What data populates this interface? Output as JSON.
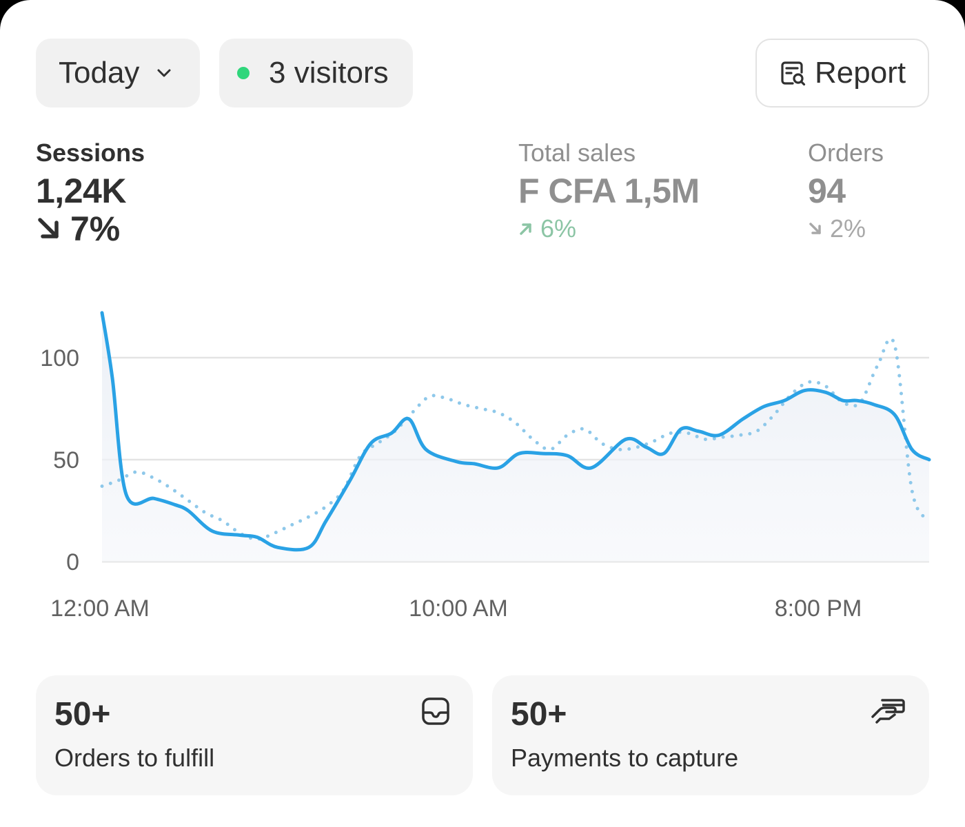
{
  "filters": {
    "date_range": "Today",
    "live_visitors": "3 visitors"
  },
  "report_button": "Report",
  "metrics": [
    {
      "label": "Sessions",
      "value": "1,24K",
      "delta": "7%",
      "direction": "down",
      "selected": true
    },
    {
      "label": "Total sales",
      "value": "F CFA 1,5M",
      "delta": "6%",
      "direction": "up",
      "selected": false
    },
    {
      "label": "Orders",
      "value": "94",
      "delta": "2%",
      "direction": "down",
      "selected": false
    }
  ],
  "chart_data": {
    "type": "line",
    "title": "",
    "y_ticks": [
      "100",
      "50",
      "0"
    ],
    "ylim": [
      0,
      100
    ],
    "x_tick_labels": [
      "12:00 AM",
      "10:00 AM",
      "8:00 PM"
    ],
    "grid": true,
    "colors": {
      "current": "#2aa2e5",
      "comparison": "#8ec8ea"
    },
    "series": [
      {
        "style": "solid",
        "x": [
          0,
          0.3,
          0.7,
          1.5,
          2.1,
          2.5,
          3.2,
          4.0,
          4.5,
          5.1,
          6.0,
          6.5,
          7.2,
          7.8,
          8.4,
          8.9,
          9.4,
          10.3,
          10.8,
          11.5,
          12.1,
          12.8,
          13.5,
          14.2,
          15.2,
          15.8,
          16.3,
          16.8,
          17.3,
          17.9,
          18.6,
          19.2,
          19.8,
          20.4,
          21.0,
          21.5,
          21.9,
          22.4,
          23.0,
          23.5,
          24.0
        ],
        "y": [
          122,
          90,
          33,
          31,
          28,
          25,
          15,
          13,
          12,
          7,
          7,
          20,
          40,
          58,
          63,
          70,
          55,
          49,
          48,
          46,
          53,
          53,
          52,
          46,
          60,
          56,
          53,
          65,
          64,
          62,
          70,
          76,
          79,
          84,
          83,
          79,
          79,
          77,
          72,
          55,
          50
        ]
      },
      {
        "style": "dotted",
        "x": [
          0,
          0.5,
          1.0,
          1.5,
          2.0,
          2.5,
          3.0,
          3.5,
          4.0,
          4.5,
          5.0,
          5.5,
          6.0,
          6.5,
          7.0,
          7.5,
          8.0,
          8.5,
          9.0,
          9.5,
          10.0,
          10.5,
          11.0,
          11.5,
          12.0,
          12.5,
          13.0,
          13.5,
          14.0,
          14.5,
          15.0,
          15.5,
          16.0,
          16.5,
          17.0,
          17.5,
          18.0,
          18.5,
          19.0,
          19.5,
          20.0,
          20.5,
          21.0,
          21.5,
          22.0,
          22.5,
          23.0,
          23.5,
          24.0
        ],
        "y": [
          37,
          40,
          44,
          41,
          36,
          30,
          24,
          20,
          14,
          11,
          14,
          18,
          22,
          27,
          35,
          52,
          58,
          64,
          73,
          81,
          80,
          77,
          75,
          73,
          68,
          60,
          55,
          62,
          65,
          58,
          55,
          56,
          59,
          63,
          63,
          60,
          61,
          62,
          64,
          72,
          82,
          88,
          86,
          78,
          78,
          96,
          106,
          35,
          20
        ]
      }
    ]
  },
  "tasks": [
    {
      "count": "50+",
      "label": "Orders to fulfill",
      "icon": "inbox-icon"
    },
    {
      "count": "50+",
      "label": "Payments to capture",
      "icon": "hand-card-icon"
    }
  ]
}
